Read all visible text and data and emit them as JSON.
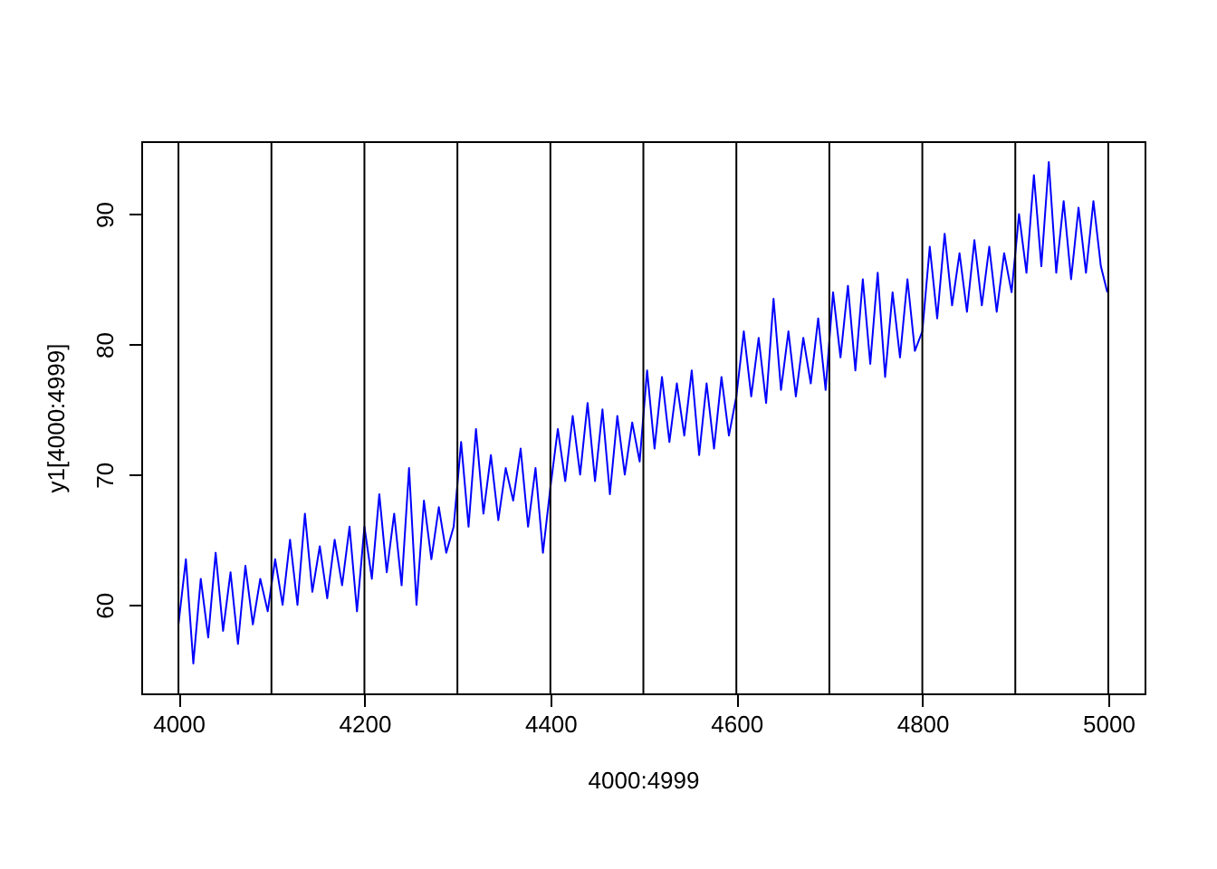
{
  "chart_data": {
    "type": "line",
    "xlabel": "4000:4999",
    "ylabel": "y1[4000:4999]",
    "x": [
      4000,
      4008,
      4016,
      4024,
      4032,
      4040,
      4048,
      4056,
      4064,
      4072,
      4080,
      4088,
      4096,
      4104,
      4112,
      4120,
      4128,
      4136,
      4144,
      4152,
      4160,
      4168,
      4176,
      4184,
      4192,
      4200,
      4208,
      4216,
      4224,
      4232,
      4240,
      4248,
      4256,
      4264,
      4272,
      4280,
      4288,
      4296,
      4304,
      4312,
      4320,
      4328,
      4336,
      4344,
      4352,
      4360,
      4368,
      4376,
      4384,
      4392,
      4400,
      4408,
      4416,
      4424,
      4432,
      4440,
      4448,
      4456,
      4464,
      4472,
      4480,
      4488,
      4496,
      4504,
      4512,
      4520,
      4528,
      4536,
      4544,
      4552,
      4560,
      4568,
      4576,
      4584,
      4592,
      4600,
      4608,
      4616,
      4624,
      4632,
      4640,
      4648,
      4656,
      4664,
      4672,
      4680,
      4688,
      4696,
      4704,
      4712,
      4720,
      4728,
      4736,
      4744,
      4752,
      4760,
      4768,
      4776,
      4784,
      4792,
      4800,
      4808,
      4816,
      4824,
      4832,
      4840,
      4848,
      4856,
      4864,
      4872,
      4880,
      4888,
      4896,
      4904,
      4912,
      4920,
      4928,
      4936,
      4944,
      4952,
      4960,
      4968,
      4976,
      4984,
      4992,
      4999
    ],
    "series": [
      {
        "color": "#0000ff",
        "values": [
          58.5,
          63.5,
          55.5,
          62,
          57.5,
          64,
          58,
          62.5,
          57,
          63,
          58.5,
          62,
          59.5,
          63.5,
          60,
          65,
          60,
          67,
          61,
          64.5,
          60.5,
          65,
          61.5,
          66,
          59.5,
          66,
          62,
          68.5,
          62.5,
          67,
          61.5,
          70.5,
          60,
          68,
          63.5,
          67.5,
          64,
          66,
          72.5,
          66,
          73.5,
          67,
          71.5,
          66.5,
          70.5,
          68,
          72,
          66,
          70.5,
          64,
          69,
          73.5,
          69.5,
          74.5,
          70,
          75.5,
          69.5,
          75,
          68.5,
          74.5,
          70,
          74,
          71,
          78,
          72,
          77.5,
          72.5,
          77,
          73,
          78,
          71.5,
          77,
          72,
          77.5,
          73,
          76,
          81,
          76,
          80.5,
          75.5,
          83.5,
          76.5,
          81,
          76,
          80.5,
          77,
          82,
          76.5,
          84,
          79,
          84.5,
          78,
          85,
          78.5,
          85.5,
          77.5,
          84,
          79,
          85,
          79.5,
          81,
          87.5,
          82,
          88.5,
          83,
          87,
          82.5,
          88,
          83,
          87.5,
          82.5,
          87,
          84,
          90,
          85.5,
          93,
          86,
          94,
          85.5,
          91,
          85,
          90.5,
          85.5,
          91,
          86,
          84
        ]
      }
    ],
    "xlim": [
      3960,
      5039
    ],
    "ylim": [
      53.2,
      95.6
    ],
    "xticks": [
      4000,
      4200,
      4400,
      4600,
      4800,
      5000
    ],
    "yticks": [
      60,
      70,
      80,
      90
    ],
    "ref_lines": [
      {
        "axis": "x",
        "value": 4000,
        "color": "#000000"
      },
      {
        "axis": "x",
        "value": 4100,
        "color": "#000000"
      },
      {
        "axis": "x",
        "value": 4200,
        "color": "#000000"
      },
      {
        "axis": "x",
        "value": 4300,
        "color": "#000000"
      },
      {
        "axis": "x",
        "value": 4400,
        "color": "#000000"
      },
      {
        "axis": "x",
        "value": 4500,
        "color": "#000000"
      },
      {
        "axis": "x",
        "value": 4600,
        "color": "#000000"
      },
      {
        "axis": "x",
        "value": 4700,
        "color": "#000000"
      },
      {
        "axis": "x",
        "value": 4800,
        "color": "#000000"
      },
      {
        "axis": "x",
        "value": 4900,
        "color": "#000000"
      },
      {
        "axis": "x",
        "value": 5000,
        "color": "#000000"
      }
    ]
  }
}
